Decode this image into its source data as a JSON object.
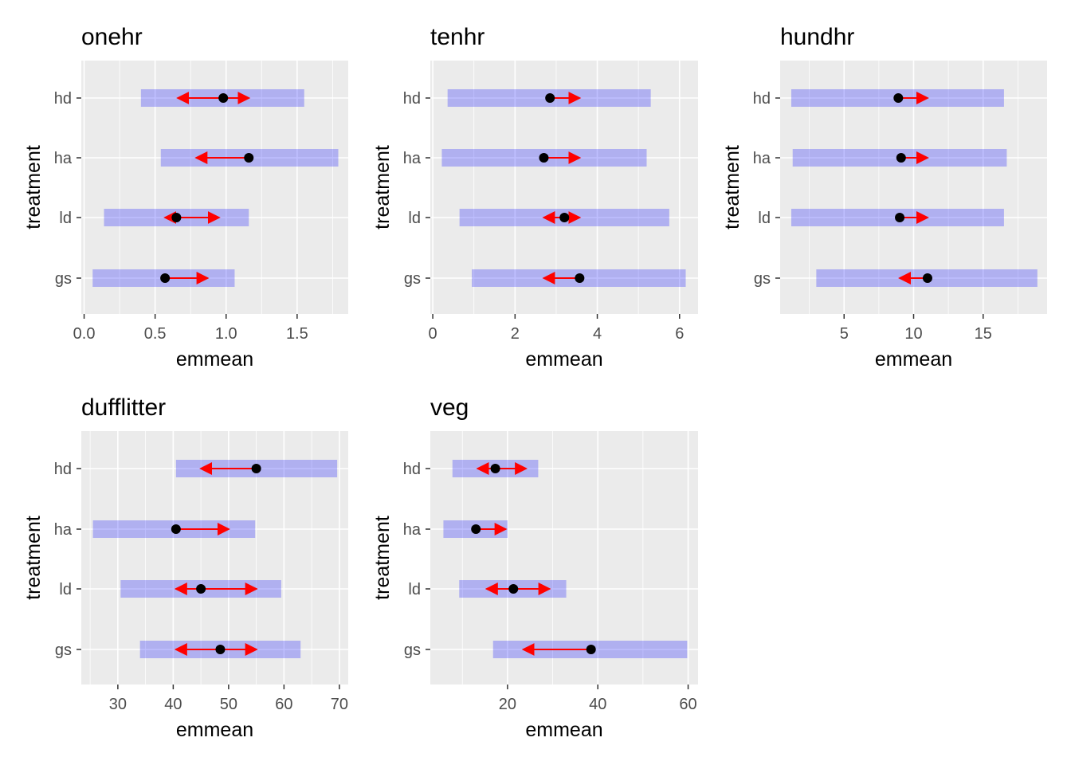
{
  "chart_data": [
    {
      "type": "interval",
      "title": "onehr",
      "xlabel": "emmean",
      "ylabel": "treatment",
      "categories": [
        "gs",
        "ld",
        "ha",
        "hd"
      ],
      "xlim": [
        -0.02,
        1.86
      ],
      "xticks": [
        0.0,
        0.5,
        1.0,
        1.5
      ],
      "xtick_labels": [
        "0.0",
        "0.5",
        "1.0",
        "1.5"
      ],
      "emmean": [
        0.57,
        0.65,
        1.16,
        0.98
      ],
      "lower_CL": [
        0.06,
        0.14,
        0.54,
        0.4
      ],
      "upper_CL": [
        1.06,
        1.16,
        1.79,
        1.55
      ],
      "arrow_lo": [
        0.57,
        0.57,
        0.79,
        0.66
      ],
      "arrow_hi": [
        0.87,
        0.95,
        1.16,
        1.16
      ]
    },
    {
      "type": "interval",
      "title": "tenhr",
      "xlabel": "emmean",
      "ylabel": "treatment",
      "categories": [
        "gs",
        "ld",
        "ha",
        "hd"
      ],
      "xlim": [
        -0.06,
        6.45
      ],
      "xticks": [
        0,
        2,
        4,
        6
      ],
      "xtick_labels": [
        "0",
        "2",
        "4",
        "6"
      ],
      "emmean": [
        3.57,
        3.2,
        2.7,
        2.85
      ],
      "lower_CL": [
        0.95,
        0.65,
        0.22,
        0.36
      ],
      "upper_CL": [
        6.15,
        5.75,
        5.2,
        5.3
      ],
      "arrow_lo": [
        2.7,
        2.7,
        2.7,
        2.85
      ],
      "arrow_hi": [
        3.57,
        3.57,
        3.57,
        3.57
      ]
    },
    {
      "type": "interval",
      "title": "hundhr",
      "xlabel": "emmean",
      "ylabel": "treatment",
      "categories": [
        "gs",
        "ld",
        "ha",
        "hd"
      ],
      "xlim": [
        0.4,
        19.6
      ],
      "xticks": [
        5,
        10,
        15
      ],
      "xtick_labels": [
        "5",
        "10",
        "15"
      ],
      "emmean": [
        11.0,
        9.0,
        9.1,
        8.9
      ],
      "lower_CL": [
        3.0,
        1.2,
        1.3,
        1.2
      ],
      "upper_CL": [
        18.9,
        16.5,
        16.7,
        16.5
      ],
      "arrow_lo": [
        9.0,
        9.0,
        9.1,
        8.9
      ],
      "arrow_hi": [
        11.0,
        11.0,
        11.0,
        11.0
      ]
    },
    {
      "type": "interval",
      "title": "dufflitter",
      "xlabel": "emmean",
      "ylabel": "treatment",
      "categories": [
        "gs",
        "ld",
        "ha",
        "hd"
      ],
      "xlim": [
        23.4,
        71.6
      ],
      "xticks": [
        30,
        40,
        50,
        60,
        70
      ],
      "xtick_labels": [
        "30",
        "40",
        "50",
        "60",
        "70"
      ],
      "emmean": [
        48.5,
        45.0,
        40.5,
        55.0
      ],
      "lower_CL": [
        34.0,
        30.5,
        25.5,
        40.5
      ],
      "upper_CL": [
        63.0,
        59.5,
        54.8,
        69.6
      ],
      "arrow_lo": [
        40.5,
        40.5,
        40.5,
        45.0
      ],
      "arrow_hi": [
        55.0,
        55.0,
        50.0,
        55.0
      ]
    },
    {
      "type": "interval",
      "title": "veg",
      "xlabel": "emmean",
      "ylabel": "treatment",
      "categories": [
        "gs",
        "ld",
        "ha",
        "hd"
      ],
      "xlim": [
        2.9,
        62.2
      ],
      "xticks": [
        20,
        40,
        60
      ],
      "xtick_labels": [
        "20",
        "40",
        "60"
      ],
      "emmean": [
        38.5,
        21.3,
        13.0,
        17.3
      ],
      "lower_CL": [
        16.8,
        9.3,
        5.8,
        7.8
      ],
      "upper_CL": [
        59.8,
        33.0,
        20.0,
        26.8
      ],
      "arrow_lo": [
        23.5,
        15.4,
        13.0,
        13.4
      ],
      "arrow_hi": [
        38.5,
        29.3,
        19.6,
        24.1
      ]
    }
  ]
}
